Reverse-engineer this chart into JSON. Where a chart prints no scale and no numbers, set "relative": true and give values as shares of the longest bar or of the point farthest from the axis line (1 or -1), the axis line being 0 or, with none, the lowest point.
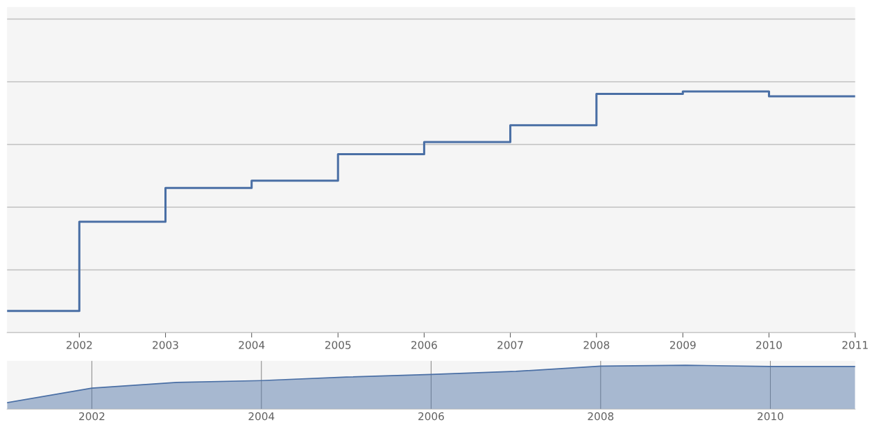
{
  "chart_data": [
    {
      "type": "step",
      "relative": true,
      "x": [
        "2001-03",
        "2002",
        "2003",
        "2004",
        "2005",
        "2006",
        "2007",
        "2008",
        "2009",
        "2010",
        "2011"
      ],
      "series": [
        {
          "color": "#4a6fa5",
          "values": [
            0.09,
            0.46,
            0.6,
            0.63,
            0.74,
            0.79,
            0.86,
            0.99,
            1,
            0.98,
            0.98
          ]
        }
      ],
      "xlim": [
        "2001-03",
        "2011-01"
      ],
      "xticks": [
        "2002",
        "2003",
        "2004",
        "2005",
        "2006",
        "2007",
        "2008",
        "2009",
        "2010",
        "2011"
      ],
      "grid": "y",
      "legend": false
    },
    {
      "type": "area",
      "relative": true,
      "x": [
        "2001-01",
        "2002",
        "2003",
        "2004",
        "2005",
        "2006",
        "2007",
        "2008",
        "2009",
        "2010",
        "2011"
      ],
      "series": [
        {
          "color": "#4a6fa5",
          "values": [
            0.15,
            0.48,
            0.61,
            0.65,
            0.73,
            0.79,
            0.86,
            0.98,
            1,
            0.97,
            0.97
          ]
        }
      ],
      "xlim": [
        "2001-01",
        "2011"
      ],
      "xticks": [
        "2002",
        "2004",
        "2006",
        "2008",
        "2010"
      ],
      "grid": "x",
      "legend": false
    }
  ]
}
